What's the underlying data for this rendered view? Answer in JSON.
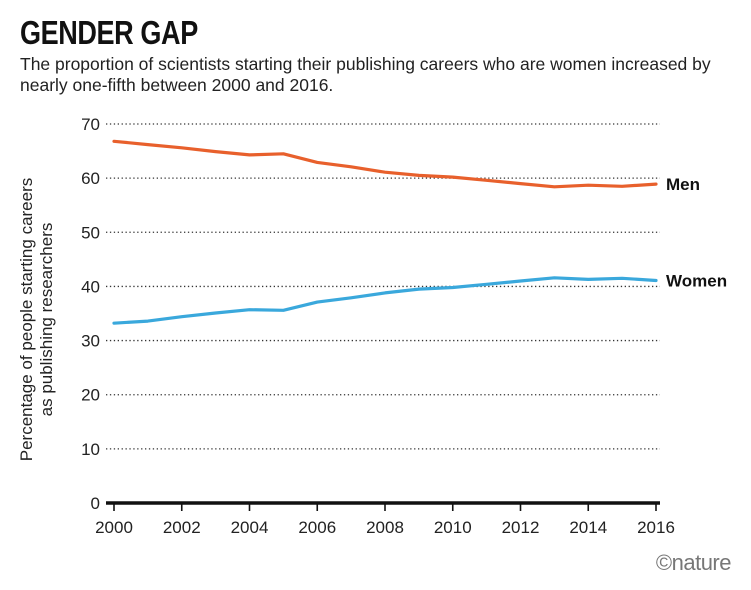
{
  "title": "GENDER GAP",
  "subtitle": "The proportion of scientists starting their publishing careers who are women increased by nearly one-fifth between 2000 and 2016.",
  "brand": "©nature",
  "colors": {
    "men": "#e8602c",
    "women": "#3aa8dc",
    "grid": "#333333",
    "axis": "#111111"
  },
  "chart_data": {
    "type": "line",
    "title": "GENDER GAP",
    "ylabel_lines": [
      "Percentage of people starting careers",
      "as publishing researchers"
    ],
    "xlabel": "",
    "xlim": [
      2000,
      2016
    ],
    "ylim": [
      0,
      70
    ],
    "x_ticks": [
      2000,
      2002,
      2004,
      2006,
      2008,
      2010,
      2012,
      2014,
      2016
    ],
    "y_ticks": [
      0,
      10,
      20,
      30,
      40,
      50,
      60,
      70
    ],
    "grid": true,
    "x": [
      2000,
      2001,
      2002,
      2003,
      2004,
      2005,
      2006,
      2007,
      2008,
      2009,
      2010,
      2011,
      2012,
      2013,
      2014,
      2015,
      2016
    ],
    "series": [
      {
        "name": "Men",
        "color": "#e8602c",
        "values": [
          66.8,
          66.2,
          65.6,
          64.9,
          64.3,
          64.5,
          62.9,
          62.1,
          61.1,
          60.5,
          60.2,
          59.6,
          59.0,
          58.4,
          58.7,
          58.5,
          58.9
        ]
      },
      {
        "name": "Women",
        "color": "#3aa8dc",
        "values": [
          33.2,
          33.6,
          34.4,
          35.1,
          35.7,
          35.6,
          37.1,
          37.9,
          38.8,
          39.5,
          39.8,
          40.4,
          41.0,
          41.6,
          41.3,
          41.5,
          41.1
        ]
      }
    ]
  }
}
